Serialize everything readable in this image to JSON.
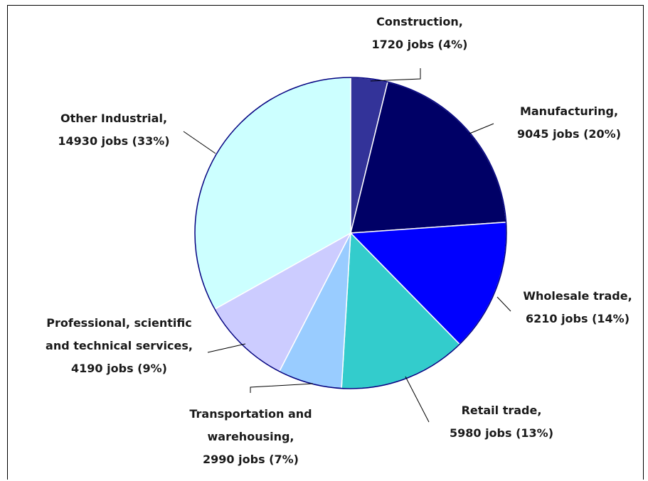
{
  "chart_data": {
    "type": "pie",
    "title": "",
    "slices": [
      {
        "label": "Construction",
        "value": 1720,
        "percent": 4,
        "color": "#333399"
      },
      {
        "label": "Manufacturing",
        "value": 9045,
        "percent": 20,
        "color": "#000066"
      },
      {
        "label": "Wholesale trade",
        "value": 6210,
        "percent": 14,
        "color": "#0000ff"
      },
      {
        "label": "Retail trade",
        "value": 5980,
        "percent": 13,
        "color": "#33cccc"
      },
      {
        "label": "Transportation and warehousing",
        "value": 2990,
        "percent": 7,
        "color": "#99ccff"
      },
      {
        "label": "Professional, scientific and technical services",
        "value": 4190,
        "percent": 9,
        "color": "#ccccff"
      },
      {
        "label": "Other Industrial",
        "value": 14930,
        "percent": 33,
        "color": "#ccffff"
      }
    ],
    "data_labels": {
      "construction": {
        "line1": "Construction,",
        "line2": "1720 jobs (4%)"
      },
      "manufacturing": {
        "line1": "Manufacturing,",
        "line2": "9045 jobs (20%)"
      },
      "wholesale": {
        "line1": "Wholesale trade,",
        "line2": "6210 jobs (14%)"
      },
      "retail": {
        "line1": "Retail trade,",
        "line2": "5980 jobs (13%)"
      },
      "transportation": {
        "line1": "Transportation and",
        "line2": "warehousing,",
        "line3": "2990 jobs (7%)"
      },
      "professional": {
        "line1": "Professional, scientific",
        "line2": "and technical services,",
        "line3": "4190 jobs (9%)"
      },
      "other": {
        "line1": "Other Industrial,",
        "line2": "14930 jobs (33%)"
      }
    },
    "legend": "none",
    "outline_color": "#000080"
  }
}
